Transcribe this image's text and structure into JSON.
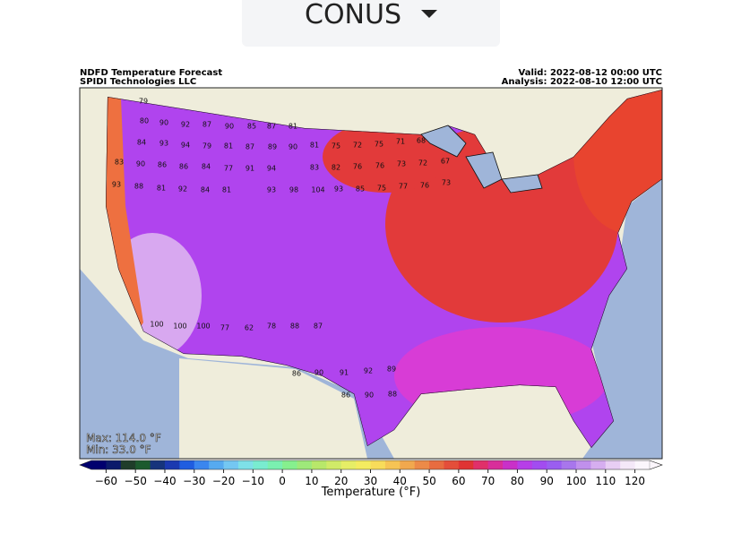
{
  "dropdown": {
    "label": "CONUS"
  },
  "map": {
    "title": "NDFD Temperature Forecast",
    "source": "SPIDI Technologies LLC",
    "valid": "Valid: 2022-08-12 00:00 UTC",
    "analysis": "Analysis: 2022-08-10 12:00 UTC",
    "max": "Max: 114.0 °F",
    "min": "Min: 33.0 °F",
    "labels": [
      79,
      80,
      90,
      92,
      87,
      90,
      85,
      87,
      81,
      84,
      93,
      94,
      79,
      81,
      87,
      89,
      90,
      81,
      75,
      72,
      75,
      71,
      68,
      83,
      90,
      86,
      86,
      84,
      77,
      91,
      94,
      83,
      82,
      76,
      76,
      73,
      72,
      67,
      93,
      88,
      81,
      92,
      84,
      81,
      93,
      98,
      104,
      93,
      85,
      75,
      77,
      76,
      73,
      100,
      100,
      100,
      77,
      62,
      78,
      88,
      87,
      86,
      90,
      91,
      92,
      89,
      86,
      90,
      88
    ]
  },
  "colorbar": {
    "lim": [
      -65,
      125
    ],
    "label": "Temperature (°F)",
    "ticks": [
      {
        "value": -60,
        "label": "−60"
      },
      {
        "value": -50,
        "label": "−50"
      },
      {
        "value": -40,
        "label": "−40"
      },
      {
        "value": -30,
        "label": "−30"
      },
      {
        "value": -20,
        "label": "−20"
      },
      {
        "value": -10,
        "label": "−10"
      },
      0,
      10,
      20,
      30,
      40,
      50,
      60,
      70,
      80,
      90,
      100,
      110,
      120
    ],
    "colors": [
      "#00006e",
      "#0b1a6b",
      "#1f3d2a",
      "#1c5a2e",
      "#16347c",
      "#1b39b0",
      "#1f5de0",
      "#3a86ef",
      "#56aaf0",
      "#74c7f2",
      "#7ee0e8",
      "#79ecd0",
      "#7af0b0",
      "#86f08e",
      "#9ee97a",
      "#b8e86a",
      "#d0ea68",
      "#e6ee66",
      "#f4ec60",
      "#f8dc5a",
      "#f6c454",
      "#f1a84e",
      "#ec8a48",
      "#e86c40",
      "#e44e3a",
      "#e03434",
      "#e0306a",
      "#d82e9a",
      "#c930c8",
      "#b63ee8",
      "#a24cf0",
      "#9a5ef0",
      "#a876ec",
      "#c090ec",
      "#d6aef0",
      "#e8cef4",
      "#f4e8f8",
      "#fbf6fc"
    ]
  }
}
